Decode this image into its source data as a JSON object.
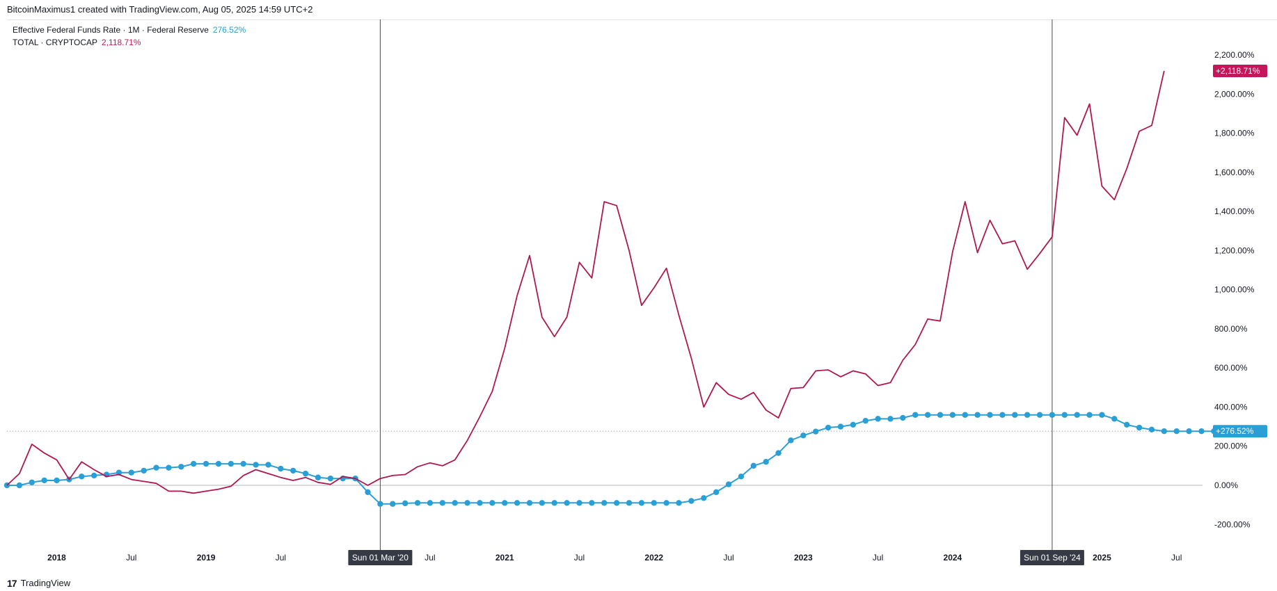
{
  "header": {
    "caption": "BitcoinMaximus1 created with TradingView.com, Aug 05, 2025 14:59 UTC+2"
  },
  "footer": {
    "logo_glyph": "17",
    "brand": "TradingView"
  },
  "legend": {
    "series1_label": "Effective Federal Funds Rate · 1M · Federal Reserve",
    "series1_value": "276.52%",
    "series2_label": "TOTAL · CRYPTOCAP",
    "series2_value": "2,118.71%"
  },
  "colors": {
    "fed": "#2a9fd6",
    "crypto": "#b0174f",
    "crypto_badge": "#c2185b",
    "crosshair": "#4a4a4a"
  },
  "chart_data": {
    "type": "line",
    "x_unit": "month",
    "y_unit": "percent change",
    "ylim": [
      -250,
      2300
    ],
    "y_ticks": [
      -200,
      0,
      200,
      400,
      600,
      800,
      1000,
      1200,
      1400,
      1600,
      1800,
      2000,
      2200
    ],
    "y_tick_labels": [
      "-200.00%",
      "0.00%",
      "200.00%",
      "400.00%",
      "600.00%",
      "800.00%",
      "1,000.00%",
      "1,200.00%",
      "1,400.00%",
      "1,600.00%",
      "1,800.00%",
      "2,000.00%",
      "2,200.00%"
    ],
    "x_range": [
      "2017-09",
      "2025-12"
    ],
    "x_ticks": [
      {
        "date": "2018-01",
        "label": "2018",
        "bold": true
      },
      {
        "date": "2018-07",
        "label": "Jul",
        "bold": false
      },
      {
        "date": "2019-01",
        "label": "2019",
        "bold": true
      },
      {
        "date": "2019-07",
        "label": "Jul",
        "bold": false
      },
      {
        "date": "2020-07",
        "label": "Jul",
        "bold": false
      },
      {
        "date": "2021-01",
        "label": "2021",
        "bold": true
      },
      {
        "date": "2021-07",
        "label": "Jul",
        "bold": false
      },
      {
        "date": "2022-01",
        "label": "2022",
        "bold": true
      },
      {
        "date": "2022-07",
        "label": "Jul",
        "bold": false
      },
      {
        "date": "2023-01",
        "label": "2023",
        "bold": true
      },
      {
        "date": "2023-07",
        "label": "Jul",
        "bold": false
      },
      {
        "date": "2024-01",
        "label": "2024",
        "bold": true
      },
      {
        "date": "2025-01",
        "label": "2025",
        "bold": true
      },
      {
        "date": "2025-07",
        "label": "Jul",
        "bold": false
      }
    ],
    "crosshairs": [
      {
        "date": "2020-03",
        "label": "Sun 01 Mar '20"
      },
      {
        "date": "2024-09",
        "label": "Sun 01 Sep '24"
      }
    ],
    "reference_line": {
      "value": 276.52,
      "label": "+276.52%"
    },
    "last_value_badges": [
      {
        "series": "TOTAL · CRYPTOCAP",
        "value": 2118.71,
        "label": "+2,118.71%"
      },
      {
        "series": "Effective Federal Funds Rate",
        "value": 276.52,
        "label": "+276.52%"
      }
    ],
    "series": [
      {
        "name": "Effective Federal Funds Rate · 1M · Federal Reserve",
        "style": "line-with-markers",
        "start": "2017-09",
        "values": [
          0,
          0,
          15,
          25,
          25,
          30,
          45,
          50,
          55,
          65,
          65,
          75,
          90,
          90,
          95,
          110,
          110,
          110,
          110,
          110,
          105,
          105,
          85,
          75,
          60,
          40,
          35,
          35,
          35,
          -35,
          -95,
          -95,
          -92,
          -90,
          -90,
          -90,
          -90,
          -90,
          -90,
          -90,
          -90,
          -90,
          -90,
          -90,
          -90,
          -90,
          -90,
          -90,
          -90,
          -90,
          -90,
          -90,
          -90,
          -90,
          -90,
          -80,
          -65,
          -35,
          5,
          45,
          100,
          120,
          165,
          230,
          255,
          275,
          295,
          300,
          310,
          330,
          340,
          340,
          345,
          360,
          360,
          360,
          360,
          360,
          360,
          360,
          360,
          360,
          360,
          360,
          360,
          360,
          360,
          360,
          360,
          340,
          310,
          295,
          285,
          276.52,
          276.52,
          276.52,
          276.52,
          276.52,
          276.52,
          276.52,
          276.52,
          276.52
        ]
      },
      {
        "name": "TOTAL · CRYPTOCAP",
        "style": "line",
        "start": "2017-09",
        "values": [
          0,
          60,
          210,
          165,
          130,
          30,
          120,
          80,
          45,
          55,
          30,
          20,
          10,
          -30,
          -30,
          -40,
          -30,
          -20,
          -5,
          50,
          80,
          60,
          40,
          25,
          40,
          15,
          5,
          45,
          35,
          0,
          35,
          50,
          55,
          95,
          115,
          100,
          130,
          230,
          350,
          480,
          700,
          970,
          1175,
          860,
          760,
          860,
          1140,
          1060,
          1450,
          1430,
          1200,
          920,
          1010,
          1110,
          870,
          650,
          400,
          525,
          465,
          440,
          475,
          385,
          345,
          495,
          500,
          585,
          590,
          555,
          585,
          570,
          510,
          525,
          640,
          720,
          850,
          840,
          1195,
          1450,
          1190,
          1355,
          1235,
          1250,
          1105,
          1185,
          1270,
          1880,
          1790,
          1950,
          1530,
          1460,
          1620,
          1810,
          1840,
          2118.71
        ]
      }
    ]
  }
}
